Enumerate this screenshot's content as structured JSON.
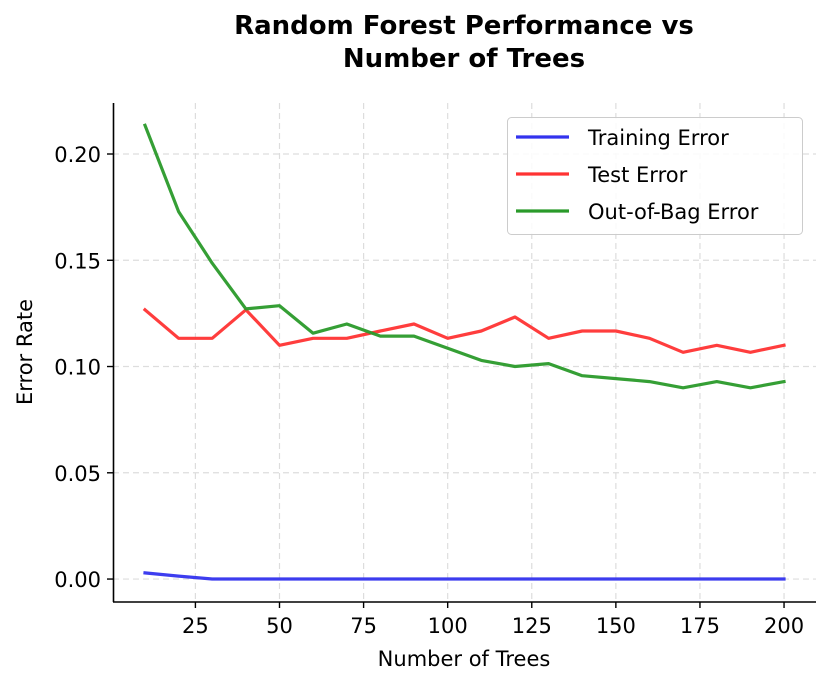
{
  "chart_data": {
    "type": "line",
    "title": "Random Forest Performance vs\nNumber of Trees",
    "title_lines": [
      "Random Forest Performance vs",
      "Number of Trees"
    ],
    "xlabel": "Number of Trees",
    "ylabel": "Error Rate",
    "x": [
      10,
      20,
      30,
      40,
      50,
      60,
      70,
      80,
      90,
      100,
      110,
      120,
      130,
      140,
      150,
      160,
      170,
      180,
      190,
      200
    ],
    "series": [
      {
        "name": "Training Error",
        "color": "#3333ee",
        "values": [
          0.0029,
          0.0014,
          0,
          0,
          0,
          0,
          0,
          0,
          0,
          0,
          0,
          0,
          0,
          0,
          0,
          0,
          0,
          0,
          0,
          0
        ]
      },
      {
        "name": "Test Error",
        "color": "#ff3333",
        "values": [
          0.1267,
          0.1133,
          0.1133,
          0.1267,
          0.11,
          0.1133,
          0.1133,
          0.1167,
          0.12,
          0.1133,
          0.1167,
          0.1233,
          0.1133,
          0.1167,
          0.1167,
          0.1133,
          0.1067,
          0.11,
          0.1067,
          0.11
        ]
      },
      {
        "name": "Out-of-Bag Error",
        "color": "#2a9a2a",
        "values": [
          0.2135,
          0.1729,
          0.1486,
          0.1271,
          0.1286,
          0.1157,
          0.12,
          0.1143,
          0.1143,
          0.1086,
          0.1029,
          0.1,
          0.1014,
          0.0957,
          0.0943,
          0.0929,
          0.09,
          0.0929,
          0.09,
          0.0929
        ]
      }
    ],
    "xticks": [
      25,
      50,
      75,
      100,
      125,
      150,
      175,
      200
    ],
    "xtick_labels": [
      "25",
      "50",
      "75",
      "100",
      "125",
      "150",
      "175",
      "200"
    ],
    "yticks": [
      0.0,
      0.05,
      0.1,
      0.15,
      0.2
    ],
    "ytick_labels": [
      "0.00",
      "0.05",
      "0.10",
      "0.15",
      "0.20"
    ],
    "xlim": [
      0.5,
      209.5
    ],
    "ylim": [
      -0.0108,
      0.224
    ],
    "grid": true,
    "grid_style": "dashed",
    "legend_position": "upper right",
    "spines": [
      "left",
      "bottom"
    ]
  }
}
